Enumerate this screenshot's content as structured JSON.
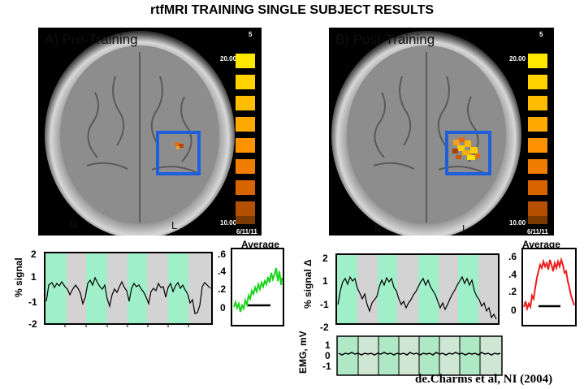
{
  "title": "rtfMRI TRAINING SINGLE SUBJECT RESULTS",
  "panels": {
    "pre": {
      "label": "A) Pre-Training",
      "corner_number": "5",
      "scale_top": "20.00",
      "scale_bottom": "10.00",
      "date": "6/11/11",
      "right_label": "R",
      "left_label": "L"
    },
    "post": {
      "label": "B) Post-Training",
      "corner_number": "5",
      "scale_top": "20.00",
      "scale_bottom": "10.00",
      "date": "6/11/11",
      "right_label": "R",
      "left_label": "L"
    }
  },
  "left_plot": {
    "ylabel": "% signal",
    "yticks": [
      "2",
      "1",
      "-1",
      "-2"
    ],
    "average": {
      "label": "Average",
      "yticks": [
        ".6",
        ".4",
        ".2",
        "0"
      ]
    }
  },
  "right_plot": {
    "ylabel": "% signal Δ",
    "yticks": [
      "2",
      "1",
      "-1",
      "-2"
    ],
    "average": {
      "label": "Average",
      "yticks": [
        ".6",
        ".4",
        ".2",
        "0"
      ]
    },
    "emg": {
      "ylabel": "EMG, mV",
      "yticks": [
        "1",
        "0",
        "-1"
      ]
    }
  },
  "citation": "de.Charms et al, NI (2004)",
  "colors": {
    "rest_band": "#d3d3d3",
    "task_band": "#9ff0c8",
    "pre_average": "#19d419",
    "post_average": "#ee1c1c",
    "roi_box": "#1f5fdc",
    "emg_rest": "#cfe6d5",
    "emg_task": "#aee8c4"
  }
}
